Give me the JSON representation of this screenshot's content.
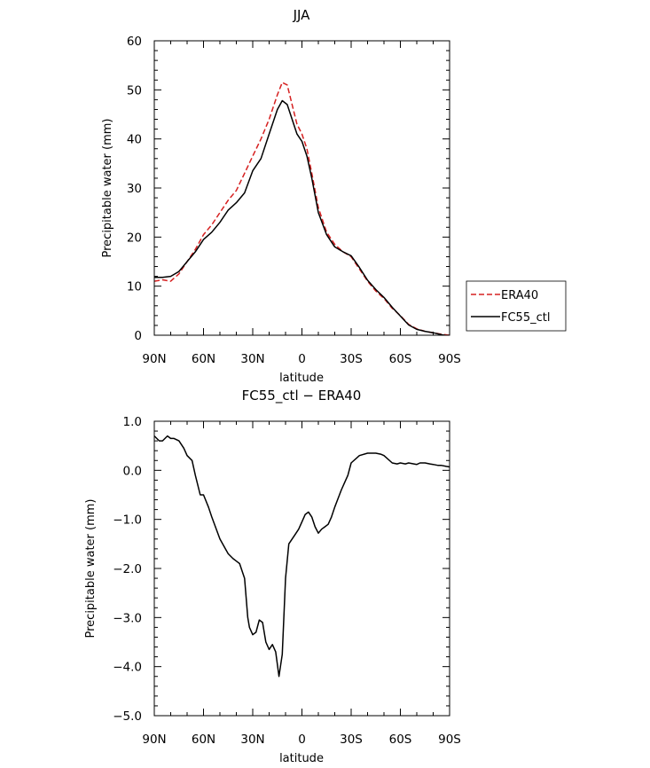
{
  "chart_data": [
    {
      "type": "line",
      "title": "JJA",
      "xlabel": "latitude",
      "ylabel": "Precipitable water (mm)",
      "xlim": [
        90,
        -90
      ],
      "ylim": [
        0,
        60
      ],
      "yticks": [
        "0",
        "10",
        "20",
        "30",
        "40",
        "50",
        "60"
      ],
      "xtick_labels": [
        {
          "value": 90,
          "label": "90N"
        },
        {
          "value": 60,
          "label": "60N"
        },
        {
          "value": 30,
          "label": "30N"
        },
        {
          "value": 0,
          "label": "0"
        },
        {
          "value": -30,
          "label": "30S"
        },
        {
          "value": -60,
          "label": "60S"
        },
        {
          "value": -90,
          "label": "90S"
        }
      ],
      "grid": false,
      "legend_position": "right",
      "x": [
        90,
        85,
        80,
        75,
        70,
        65,
        60,
        55,
        50,
        45,
        40,
        35,
        30,
        25,
        20,
        15,
        12,
        9,
        6,
        3,
        0,
        -3,
        -6,
        -10,
        -15,
        -20,
        -25,
        -30,
        -35,
        -40,
        -45,
        -50,
        -55,
        -60,
        -65,
        -70,
        -75,
        -80,
        -85,
        -90
      ],
      "series": [
        {
          "name": "ERA40",
          "color": "#d62020",
          "dash": "dashed",
          "values": [
            11,
            11.3,
            11,
            12.5,
            15,
            17.5,
            20.5,
            22.5,
            25,
            27.5,
            29.5,
            33,
            36.5,
            40,
            44,
            49,
            51.5,
            51,
            47,
            43,
            41,
            38,
            33,
            26,
            21,
            18.5,
            17,
            16,
            13.5,
            11,
            9,
            7.5,
            5.5,
            4,
            2.2,
            1.3,
            0.8,
            0.5,
            0.2,
            0.0
          ]
        },
        {
          "name": "FC55_ctl",
          "color": "#000000",
          "dash": "solid",
          "values": [
            11.8,
            11.8,
            12,
            13,
            15,
            17,
            19.5,
            21,
            23,
            25.5,
            27,
            29,
            33.5,
            36,
            41,
            46,
            47.8,
            47,
            44,
            41,
            39.5,
            36.5,
            32,
            25,
            20.5,
            18,
            17,
            16.2,
            13.8,
            11.2,
            9.3,
            7.7,
            5.7,
            3.9,
            2.1,
            1.2,
            0.8,
            0.5,
            0.1,
            -0.2
          ]
        }
      ]
    },
    {
      "type": "line",
      "title": "FC55_ctl − ERA40",
      "xlabel": "latitude",
      "ylabel": "Precipitable water (mm)",
      "xlim": [
        90,
        -90
      ],
      "ylim": [
        -5.0,
        1.0
      ],
      "yticks": [
        "−5.0",
        "−4.0",
        "−3.0",
        "−2.0",
        "−1.0",
        "0.0",
        "1.0"
      ],
      "xtick_labels": [
        {
          "value": 90,
          "label": "90N"
        },
        {
          "value": 60,
          "label": "60N"
        },
        {
          "value": 30,
          "label": "30N"
        },
        {
          "value": 0,
          "label": "0"
        },
        {
          "value": -30,
          "label": "30S"
        },
        {
          "value": -60,
          "label": "60S"
        },
        {
          "value": -90,
          "label": "90S"
        }
      ],
      "grid": false,
      "x": [
        90,
        87,
        85,
        82,
        80,
        78,
        75,
        72,
        70,
        67,
        65,
        62,
        60,
        57,
        55,
        50,
        45,
        42,
        40,
        38,
        35,
        33,
        32,
        30,
        28,
        26,
        24,
        22,
        20,
        18,
        16,
        14,
        12,
        10,
        8,
        6,
        4,
        2,
        0,
        -2,
        -4,
        -6,
        -8,
        -10,
        -12,
        -14,
        -16,
        -18,
        -20,
        -24,
        -26,
        -28,
        -30,
        -35,
        -40,
        -43,
        -45,
        -48,
        -50,
        -55,
        -58,
        -60,
        -63,
        -65,
        -70,
        -72,
        -75,
        -78,
        -80,
        -83,
        -85,
        -88,
        -90
      ],
      "series": [
        {
          "name": "FC55_ctl − ERA40",
          "color": "#000000",
          "dash": "solid",
          "values": [
            0.7,
            0.6,
            0.6,
            0.7,
            0.65,
            0.65,
            0.6,
            0.45,
            0.3,
            0.2,
            -0.1,
            -0.5,
            -0.5,
            -0.75,
            -0.95,
            -1.4,
            -1.7,
            -1.8,
            -1.85,
            -1.9,
            -2.2,
            -3.0,
            -3.2,
            -3.35,
            -3.3,
            -3.05,
            -3.1,
            -3.5,
            -3.65,
            -3.55,
            -3.7,
            -4.2,
            -3.75,
            -2.2,
            -1.5,
            -1.4,
            -1.3,
            -1.2,
            -1.05,
            -0.9,
            -0.85,
            -0.95,
            -1.15,
            -1.28,
            -1.2,
            -1.15,
            -1.1,
            -0.95,
            -0.75,
            -0.4,
            -0.25,
            -0.1,
            0.15,
            0.3,
            0.35,
            0.35,
            0.35,
            0.33,
            0.3,
            0.15,
            0.13,
            0.15,
            0.13,
            0.15,
            0.12,
            0.15,
            0.15,
            0.13,
            0.12,
            0.1,
            0.1,
            0.08,
            0.07
          ]
        }
      ]
    }
  ]
}
